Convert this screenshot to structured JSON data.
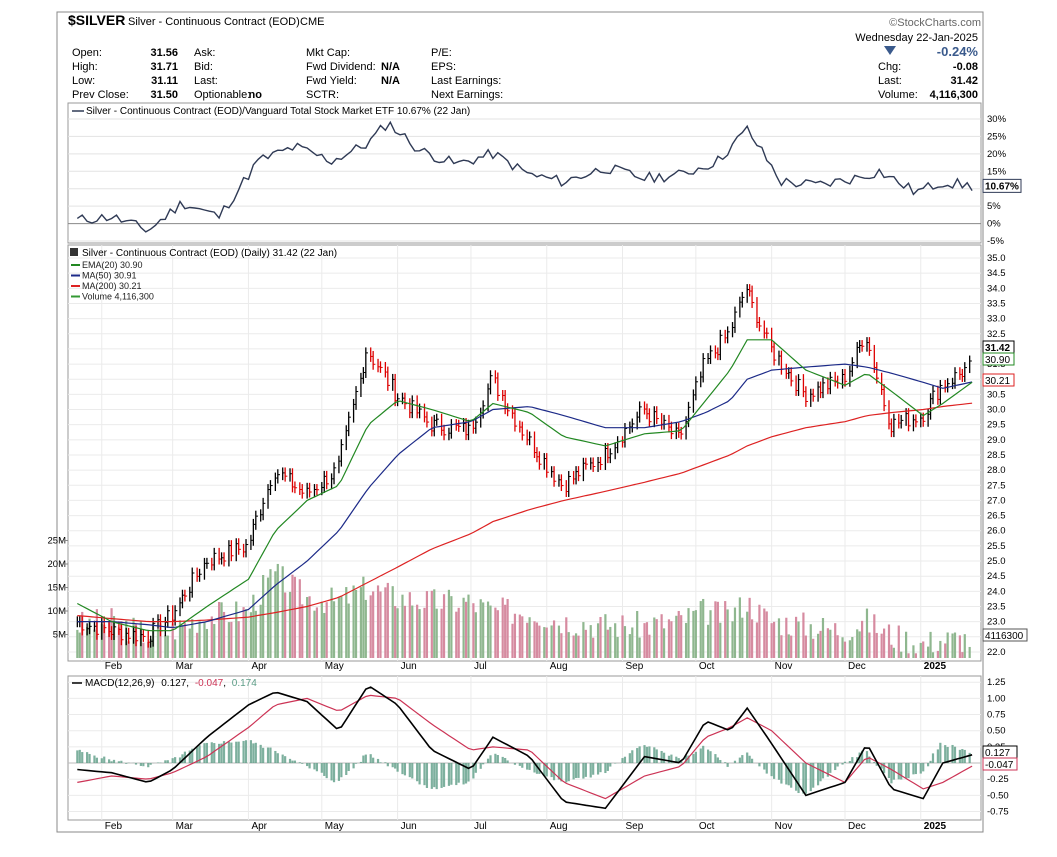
{
  "header": {
    "symbol": "$SILVER",
    "name": "Silver - Continuous Contract (EOD)",
    "exchange": "CME",
    "watermark": "©StockCharts.com",
    "date": "Wednesday  22-Jan-2025",
    "change_pct": "-0.24%",
    "chg_label": "Chg:",
    "chg_value": "-0.08",
    "last_label": "Last:",
    "last_value": "31.42",
    "volume_label": "Volume:",
    "volume_value": "4,116,300",
    "direction_icon": "down-triangle-icon",
    "fields": [
      {
        "label": "Open:",
        "value": "31.56"
      },
      {
        "label": "High:",
        "value": "31.71"
      },
      {
        "label": "Low:",
        "value": "31.11"
      },
      {
        "label": "Prev Close:",
        "value": "31.50"
      },
      {
        "label": "Ask:",
        "value": ""
      },
      {
        "label": "Bid:",
        "value": ""
      },
      {
        "label": "Last:",
        "value": ""
      },
      {
        "label": "Optionable:",
        "value": "no"
      },
      {
        "label": "Mkt Cap:",
        "value": ""
      },
      {
        "label": "Fwd Dividend:",
        "value": "N/A"
      },
      {
        "label": "Fwd Yield:",
        "value": "N/A"
      },
      {
        "label": "SCTR:",
        "value": ""
      },
      {
        "label": "P/E:",
        "value": ""
      },
      {
        "label": "EPS:",
        "value": ""
      },
      {
        "label": "Last Earnings:",
        "value": ""
      },
      {
        "label": "Next Earnings:",
        "value": ""
      }
    ]
  },
  "colors": {
    "ratio_line": "#2f3a55",
    "up_bar": "#000000",
    "down_bar": "#dd0000",
    "ema20": "#228822",
    "ma50": "#1c2a88",
    "ma200": "#dd2222",
    "vol_up": "#8fb78f",
    "vol_down": "#d68ba0",
    "macd": "#000000",
    "signal": "#cc3355",
    "hist": "#5c9c86"
  },
  "chart_data": [
    {
      "type": "line",
      "legend": "Silver - Continuous Contract (EOD)/Vanguard Total Stock Market ETF 10.67% (22 Jan)",
      "last_label": "10.67%",
      "ylim": [
        -5,
        32
      ],
      "yticks": [
        "30%",
        "25%",
        "20%",
        "15%",
        "10%",
        "5%",
        "0%",
        "-5%"
      ],
      "ytick_values": [
        30,
        25,
        20,
        15,
        10,
        5,
        0,
        -5
      ],
      "x": [
        "2024-01-22",
        "2024-02-05",
        "2024-02-20",
        "2024-03-05",
        "2024-03-20",
        "2024-04-05",
        "2024-04-20",
        "2024-05-05",
        "2024-05-20",
        "2024-05-28",
        "2024-06-10",
        "2024-06-25",
        "2024-07-10",
        "2024-07-25",
        "2024-08-08",
        "2024-08-25",
        "2024-09-10",
        "2024-09-25",
        "2024-10-10",
        "2024-10-22",
        "2024-11-05",
        "2024-11-20",
        "2024-12-05",
        "2024-12-15",
        "2024-12-30",
        "2025-01-10",
        "2025-01-22"
      ],
      "values": [
        1,
        2,
        -2,
        6,
        2,
        18,
        22,
        18,
        23,
        29,
        21,
        17,
        20,
        14,
        12,
        16,
        13,
        14,
        18,
        27,
        12,
        11,
        13,
        15,
        9,
        12,
        10.67
      ]
    },
    {
      "type": "candlestick",
      "legend": "Silver - Continuous Contract (EOD) (Daily) 31.42 (22 Jan)",
      "legend_items": [
        {
          "label": "EMA(20) 30.90",
          "color": "#228822"
        },
        {
          "label": "MA(50) 30.91",
          "color": "#1c2a88"
        },
        {
          "label": "MA(200) 30.21",
          "color": "#dd2222"
        },
        {
          "label": "Volume 4,116,300",
          "color": "#339933"
        }
      ],
      "ylim": [
        21.8,
        35.1
      ],
      "yticks": [
        "35.0",
        "34.5",
        "34.0",
        "33.5",
        "33.0",
        "32.5",
        "32.0",
        "31.5",
        "31.0",
        "30.5",
        "30.0",
        "29.5",
        "29.0",
        "28.5",
        "28.0",
        "27.5",
        "27.0",
        "26.5",
        "26.0",
        "25.5",
        "25.0",
        "24.5",
        "24.0",
        "23.5",
        "23.0",
        "22.5",
        "22.0"
      ],
      "ytick_values": [
        35,
        34.5,
        34,
        33.5,
        33,
        32.5,
        32,
        31.5,
        31,
        30.5,
        30,
        29.5,
        29,
        28.5,
        28,
        27.5,
        27,
        26.5,
        26,
        25.5,
        25,
        24.5,
        24,
        23.5,
        23,
        22.5,
        22
      ],
      "right_labels": [
        {
          "label": "31.42",
          "value": 31.42
        },
        {
          "label": "30.90",
          "value": 30.9
        },
        {
          "label": "30.21",
          "value": 30.21
        },
        {
          "label": "4116300",
          "value": 22.4
        }
      ],
      "vol_yticks": [
        "25M",
        "20M",
        "15M",
        "10M",
        "5M"
      ],
      "vol_ytick_values": [
        25,
        20,
        15,
        10,
        5
      ],
      "vol_max": 40,
      "x": [
        "2024-01-22",
        "2024-02-05",
        "2024-02-20",
        "2024-03-01",
        "2024-03-15",
        "2024-04-01",
        "2024-04-12",
        "2024-04-25",
        "2024-05-08",
        "2024-05-20",
        "2024-06-01",
        "2024-06-15",
        "2024-07-01",
        "2024-07-10",
        "2024-07-25",
        "2024-08-08",
        "2024-08-25",
        "2024-09-10",
        "2024-09-25",
        "2024-10-05",
        "2024-10-15",
        "2024-10-22",
        "2024-11-01",
        "2024-11-15",
        "2024-12-01",
        "2024-12-10",
        "2024-12-20",
        "2025-01-02",
        "2025-01-10",
        "2025-01-22"
      ],
      "close": [
        23.0,
        22.7,
        22.5,
        23.2,
        25.0,
        25.5,
        28.0,
        27.2,
        28.0,
        32.0,
        30.5,
        29.5,
        29.3,
        31.0,
        29.0,
        27.5,
        28.5,
        30.0,
        29.0,
        31.5,
        32.5,
        34.0,
        32.0,
        30.5,
        31.0,
        32.5,
        29.5,
        29.8,
        30.8,
        31.42
      ],
      "ema20": [
        23.6,
        23.0,
        22.7,
        22.7,
        23.5,
        24.4,
        26.0,
        27.0,
        27.5,
        29.5,
        30.3,
        30.0,
        29.6,
        30.2,
        29.9,
        29.1,
        28.8,
        29.2,
        29.3,
        30.3,
        31.3,
        32.3,
        32.3,
        31.3,
        30.8,
        31.2,
        30.6,
        29.8,
        30.2,
        30.9
      ],
      "ma50": [
        23.0,
        23.0,
        22.9,
        22.8,
        23.0,
        23.4,
        24.2,
        25.0,
        26.0,
        27.4,
        28.5,
        29.4,
        29.6,
        30.0,
        30.1,
        29.8,
        29.4,
        29.4,
        29.6,
        29.9,
        30.3,
        31.0,
        31.3,
        31.4,
        31.5,
        31.4,
        31.2,
        30.9,
        30.7,
        30.91
      ],
      "ma200": [
        23.2,
        23.1,
        23.0,
        23.0,
        23.05,
        23.15,
        23.3,
        23.5,
        23.8,
        24.3,
        24.8,
        25.4,
        25.9,
        26.3,
        26.7,
        27.0,
        27.3,
        27.6,
        27.9,
        28.2,
        28.5,
        28.8,
        29.1,
        29.4,
        29.6,
        29.8,
        29.9,
        30.0,
        30.1,
        30.21
      ],
      "volume": [
        7,
        8,
        5,
        6,
        9,
        10,
        18,
        13,
        12,
        15,
        13,
        12,
        12,
        10,
        10,
        8,
        7,
        7,
        8,
        10,
        9,
        12,
        8,
        7,
        6,
        8,
        5,
        3,
        4,
        4.1
      ]
    },
    {
      "type": "line",
      "legend_prefix": "MACD(12,26,9)",
      "legend_values": [
        "0.127",
        "-0.047",
        "0.174"
      ],
      "ylim": [
        -0.85,
        1.3
      ],
      "yticks": [
        "1.25",
        "1.00",
        "0.75",
        "0.50",
        "0.25",
        "0.00",
        "-0.25",
        "-0.50",
        "-0.75"
      ],
      "ytick_values": [
        1.25,
        1.0,
        0.75,
        0.5,
        0.25,
        0.0,
        -0.25,
        -0.5,
        -0.75
      ],
      "right_labels": [
        {
          "label": "0.127",
          "value": 0.127
        },
        {
          "label": "-0.047",
          "value": -0.047
        }
      ],
      "x": [
        "2024-01-22",
        "2024-02-05",
        "2024-02-20",
        "2024-03-01",
        "2024-03-15",
        "2024-04-01",
        "2024-04-12",
        "2024-04-25",
        "2024-05-08",
        "2024-05-20",
        "2024-06-01",
        "2024-06-15",
        "2024-07-01",
        "2024-07-10",
        "2024-07-25",
        "2024-08-08",
        "2024-08-25",
        "2024-09-10",
        "2024-09-25",
        "2024-10-05",
        "2024-10-15",
        "2024-10-22",
        "2024-11-01",
        "2024-11-15",
        "2024-12-01",
        "2024-12-10",
        "2024-12-20",
        "2025-01-02",
        "2025-01-10",
        "2025-01-22"
      ],
      "macd": [
        -0.1,
        -0.15,
        -0.3,
        -0.1,
        0.4,
        0.9,
        1.1,
        0.95,
        0.5,
        1.2,
        0.9,
        0.2,
        -0.1,
        0.4,
        0.1,
        -0.6,
        -0.7,
        0.1,
        0.0,
        0.65,
        0.5,
        0.85,
        0.3,
        -0.5,
        -0.3,
        0.3,
        -0.4,
        -0.55,
        0.0,
        0.127
      ],
      "signal": [
        -0.3,
        -0.2,
        -0.25,
        -0.15,
        0.1,
        0.55,
        0.9,
        1.0,
        0.8,
        1.05,
        1.0,
        0.6,
        0.2,
        0.25,
        0.2,
        -0.3,
        -0.55,
        -0.2,
        -0.05,
        0.4,
        0.55,
        0.7,
        0.5,
        0.0,
        -0.3,
        0.1,
        -0.1,
        -0.4,
        -0.3,
        -0.047
      ],
      "histogram": [
        0.2,
        0.05,
        -0.05,
        0.05,
        0.3,
        0.35,
        0.2,
        -0.05,
        -0.3,
        0.15,
        -0.1,
        -0.4,
        -0.3,
        0.15,
        -0.1,
        -0.3,
        -0.15,
        0.3,
        0.05,
        0.25,
        -0.05,
        0.15,
        -0.2,
        -0.5,
        0.0,
        0.2,
        -0.3,
        -0.15,
        0.3,
        0.174
      ]
    }
  ],
  "months": [
    {
      "label": "Feb",
      "date": "2024-02-01"
    },
    {
      "label": "Mar",
      "date": "2024-03-01"
    },
    {
      "label": "Apr",
      "date": "2024-04-01"
    },
    {
      "label": "May",
      "date": "2024-05-01"
    },
    {
      "label": "Jun",
      "date": "2024-06-01"
    },
    {
      "label": "Jul",
      "date": "2024-07-01"
    },
    {
      "label": "Aug",
      "date": "2024-08-01"
    },
    {
      "label": "Sep",
      "date": "2024-09-01"
    },
    {
      "label": "Oct",
      "date": "2024-10-01"
    },
    {
      "label": "Nov",
      "date": "2024-11-01"
    },
    {
      "label": "Dec",
      "date": "2024-12-01"
    },
    {
      "label": "2025",
      "date": "2025-01-01"
    }
  ]
}
